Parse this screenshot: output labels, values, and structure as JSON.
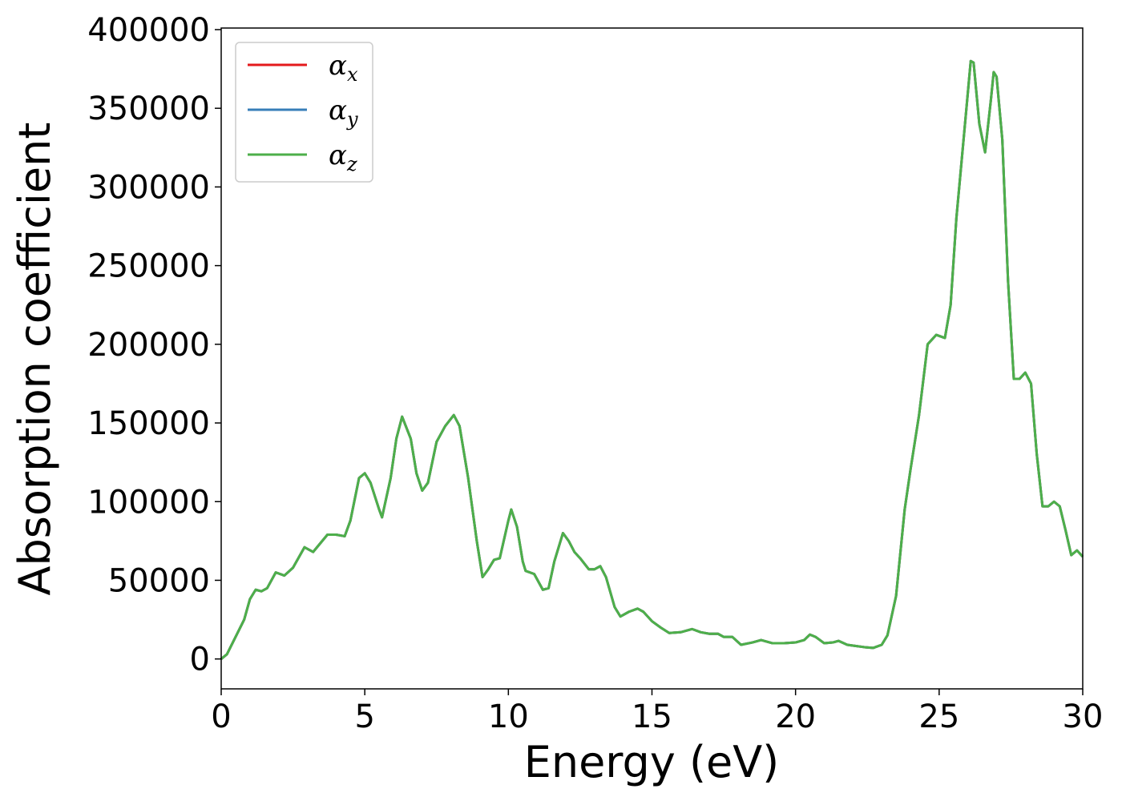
{
  "chart_data": {
    "type": "line",
    "xlabel": "Energy (eV)",
    "ylabel": "Absorption coefficient",
    "xlim": [
      0,
      30
    ],
    "ylim": [
      -19000,
      401000
    ],
    "xticks": [
      0,
      5,
      10,
      15,
      20,
      25,
      30
    ],
    "yticks": [
      0,
      50000,
      100000,
      150000,
      200000,
      250000,
      300000,
      350000,
      400000
    ],
    "legend": "upper left",
    "x": [
      0,
      0.2,
      0.5,
      0.8,
      1.0,
      1.2,
      1.4,
      1.6,
      1.9,
      2.2,
      2.5,
      2.9,
      3.2,
      3.7,
      4.0,
      4.3,
      4.5,
      4.8,
      5.0,
      5.2,
      5.5,
      5.6,
      5.9,
      6.1,
      6.3,
      6.6,
      6.8,
      7.0,
      7.2,
      7.5,
      7.8,
      8.1,
      8.3,
      8.6,
      8.9,
      9.1,
      9.3,
      9.5,
      9.7,
      10.0,
      10.1,
      10.3,
      10.5,
      10.6,
      10.9,
      11.2,
      11.4,
      11.6,
      11.9,
      12.1,
      12.3,
      12.5,
      12.8,
      13.0,
      13.2,
      13.4,
      13.7,
      13.9,
      14.2,
      14.5,
      14.7,
      15.0,
      15.3,
      15.6,
      16.0,
      16.4,
      16.7,
      17.0,
      17.3,
      17.5,
      17.8,
      18.1,
      18.5,
      18.8,
      19.2,
      19.6,
      20.0,
      20.3,
      20.5,
      20.7,
      21.0,
      21.3,
      21.5,
      21.8,
      22.0,
      22.4,
      22.7,
      23.0,
      23.2,
      23.5,
      23.8,
      24.0,
      24.3,
      24.6,
      24.9,
      25.2,
      25.4,
      25.6,
      25.8,
      26.0,
      26.1,
      26.2,
      26.4,
      26.6,
      26.8,
      26.9,
      27.0,
      27.2,
      27.4,
      27.6,
      27.8,
      28.0,
      28.2,
      28.4,
      28.6,
      28.8,
      29.0,
      29.2,
      29.4,
      29.6,
      29.8,
      30.0
    ],
    "series": [
      {
        "name": "αx",
        "color": "#e41a1c",
        "values": [
          0,
          3000,
          14000,
          25000,
          38000,
          44000,
          43000,
          45000,
          55000,
          53000,
          58000,
          71000,
          68000,
          79000,
          79000,
          78000,
          88000,
          115000,
          118000,
          112000,
          95000,
          90000,
          115000,
          140000,
          154000,
          140000,
          118000,
          107000,
          112000,
          138000,
          148000,
          155000,
          148000,
          115000,
          75000,
          52000,
          57000,
          63000,
          64000,
          88000,
          95000,
          84000,
          62000,
          56000,
          54000,
          44000,
          45000,
          62000,
          80000,
          75000,
          68000,
          64000,
          57000,
          57000,
          59000,
          52000,
          33000,
          27000,
          30000,
          32000,
          30000,
          24000,
          20000,
          16500,
          17000,
          19000,
          17000,
          16000,
          16000,
          14000,
          14000,
          9000,
          10500,
          12000,
          10000,
          10000,
          10500,
          12000,
          15500,
          14000,
          10000,
          10500,
          11500,
          9000,
          8500,
          7500,
          7000,
          9000,
          15000,
          40000,
          95000,
          120000,
          155000,
          200000,
          206000,
          204000,
          225000,
          280000,
          320000,
          360000,
          380000,
          379000,
          340000,
          322000,
          355000,
          373000,
          370000,
          330000,
          240000,
          178000,
          178000,
          182000,
          175000,
          130000,
          97000,
          97000,
          100000,
          97000,
          82000,
          66000,
          69000,
          65000
        ]
      },
      {
        "name": "αy",
        "color": "#377eb8",
        "values": [
          0,
          3000,
          14000,
          25000,
          38000,
          44000,
          43000,
          45000,
          55000,
          53000,
          58000,
          71000,
          68000,
          79000,
          79000,
          78000,
          88000,
          115000,
          118000,
          112000,
          95000,
          90000,
          115000,
          140000,
          154000,
          140000,
          118000,
          107000,
          112000,
          138000,
          148000,
          155000,
          148000,
          115000,
          75000,
          52000,
          57000,
          63000,
          64000,
          88000,
          95000,
          84000,
          62000,
          56000,
          54000,
          44000,
          45000,
          62000,
          80000,
          75000,
          68000,
          64000,
          57000,
          57000,
          59000,
          52000,
          33000,
          27000,
          30000,
          32000,
          30000,
          24000,
          20000,
          16500,
          17000,
          19000,
          17000,
          16000,
          16000,
          14000,
          14000,
          9000,
          10500,
          12000,
          10000,
          10000,
          10500,
          12000,
          15500,
          14000,
          10000,
          10500,
          11500,
          9000,
          8500,
          7500,
          7000,
          9000,
          15000,
          40000,
          95000,
          120000,
          155000,
          200000,
          206000,
          204000,
          225000,
          280000,
          320000,
          360000,
          380000,
          379000,
          340000,
          322000,
          355000,
          373000,
          370000,
          330000,
          240000,
          178000,
          178000,
          182000,
          175000,
          130000,
          97000,
          97000,
          100000,
          97000,
          82000,
          66000,
          69000,
          65000
        ]
      },
      {
        "name": "αz",
        "color": "#4daf4a",
        "values": [
          0,
          3000,
          14000,
          25000,
          38000,
          44000,
          43000,
          45000,
          55000,
          53000,
          58000,
          71000,
          68000,
          79000,
          79000,
          78000,
          88000,
          115000,
          118000,
          112000,
          95000,
          90000,
          115000,
          140000,
          154000,
          140000,
          118000,
          107000,
          112000,
          138000,
          148000,
          155000,
          148000,
          115000,
          75000,
          52000,
          57000,
          63000,
          64000,
          88000,
          95000,
          84000,
          62000,
          56000,
          54000,
          44000,
          45000,
          62000,
          80000,
          75000,
          68000,
          64000,
          57000,
          57000,
          59000,
          52000,
          33000,
          27000,
          30000,
          32000,
          30000,
          24000,
          20000,
          16500,
          17000,
          19000,
          17000,
          16000,
          16000,
          14000,
          14000,
          9000,
          10500,
          12000,
          10000,
          10000,
          10500,
          12000,
          15500,
          14000,
          10000,
          10500,
          11500,
          9000,
          8500,
          7500,
          7000,
          9000,
          15000,
          40000,
          95000,
          120000,
          155000,
          200000,
          206000,
          204000,
          225000,
          280000,
          320000,
          360000,
          380000,
          379000,
          340000,
          322000,
          355000,
          373000,
          370000,
          330000,
          240000,
          178000,
          178000,
          182000,
          175000,
          130000,
          97000,
          97000,
          100000,
          97000,
          82000,
          66000,
          69000,
          65000
        ]
      }
    ]
  }
}
